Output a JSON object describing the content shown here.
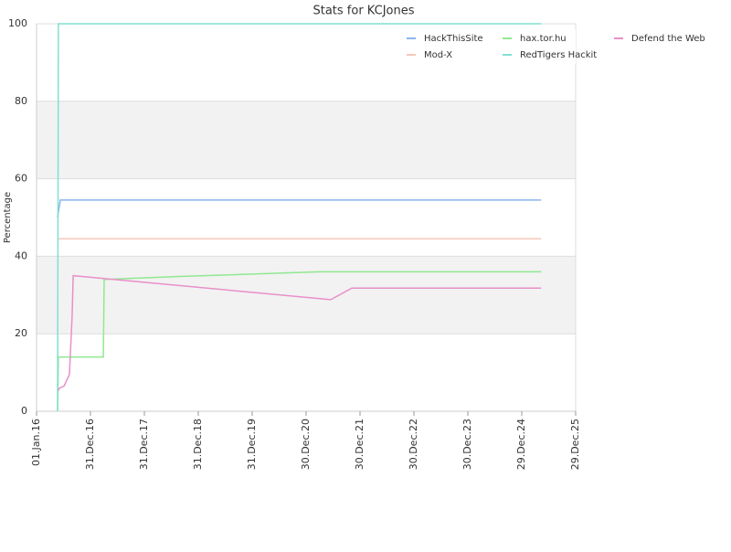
{
  "chart_data": {
    "type": "line",
    "title": "Stats for KCJones",
    "y_label": "Percentage",
    "xlim": [
      "2016-01-01",
      "2025-12-29"
    ],
    "xticks": [
      {
        "value": "2016-01-01",
        "label": "01.Jan.16"
      },
      {
        "value": "2016-12-31",
        "label": "31.Dec.16"
      },
      {
        "value": "2017-12-31",
        "label": "31.Dec.17"
      },
      {
        "value": "2018-12-31",
        "label": "31.Dec.18"
      },
      {
        "value": "2019-12-31",
        "label": "31.Dec.19"
      },
      {
        "value": "2020-12-30",
        "label": "30.Dec.20"
      },
      {
        "value": "2021-12-30",
        "label": "30.Dec.21"
      },
      {
        "value": "2022-12-30",
        "label": "30.Dec.22"
      },
      {
        "value": "2023-12-30",
        "label": "30.Dec.23"
      },
      {
        "value": "2024-12-29",
        "label": "29.Dec.24"
      },
      {
        "value": "2025-12-29",
        "label": "29.Dec.25"
      }
    ],
    "ylim": [
      0,
      100
    ],
    "yticks": [
      0,
      20,
      40,
      60,
      80,
      100
    ],
    "grid": true,
    "legend": "top-right",
    "series": [
      {
        "name": "HackThisSite",
        "color": "#8ab4ee",
        "x": [
          "2016-05-22",
          "2016-06-10",
          "2025-05-09"
        ],
        "values": [
          50,
          54.5,
          54.5
        ]
      },
      {
        "name": "hax.tor.hu",
        "color": "#90e890",
        "x": [
          "2016-05-22",
          "2016-05-28",
          "2017-03-28",
          "2017-04-03",
          "2018-09-17",
          "2021-04-02",
          "2025-05-09"
        ],
        "values": [
          0,
          14,
          14,
          34,
          34.8,
          36,
          36
        ]
      },
      {
        "name": "Defend the Web",
        "color": "#e890c8",
        "x": [
          "2016-05-22",
          "2016-06-04",
          "2016-07-05",
          "2016-08-11",
          "2016-08-29",
          "2016-09-05",
          "2021-06-15",
          "2021-11-05",
          "2025-05-09"
        ],
        "values": [
          5,
          6,
          6.5,
          9.5,
          25,
          35,
          28.8,
          31.8,
          31.8
        ]
      },
      {
        "name": "Mod-X",
        "color": "#f2c8b8",
        "x": [
          "2016-05-22",
          "2025-05-09"
        ],
        "values": [
          44.5,
          44.5
        ]
      },
      {
        "name": "RedTigers Hackit",
        "color": "#80e0d0",
        "x": [
          "2016-05-22",
          "2016-05-28",
          "2025-05-09"
        ],
        "values": [
          0,
          100,
          100
        ]
      }
    ]
  }
}
